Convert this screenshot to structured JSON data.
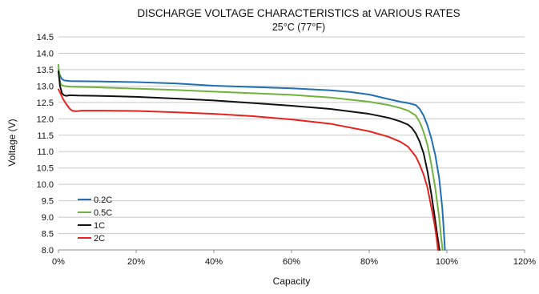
{
  "chart_data": {
    "type": "line",
    "title": "DISCHARGE VOLTAGE CHARACTERISTICS at VARIOUS RATES",
    "subtitle": "25°C (77°F)",
    "xlabel": "Capacity",
    "ylabel": "Voltage (V)",
    "xlim": [
      0,
      120
    ],
    "ylim": [
      8.0,
      14.5
    ],
    "x_unit": "%",
    "x_ticks": [
      "0%",
      "20%",
      "40%",
      "60%",
      "80%",
      "100%",
      "120%"
    ],
    "x_tick_values": [
      0,
      20,
      40,
      60,
      80,
      100,
      120
    ],
    "y_ticks": [
      "8.0",
      "8.5",
      "9.0",
      "9.5",
      "10.0",
      "10.5",
      "11.0",
      "11.5",
      "12.0",
      "12.5",
      "13.0",
      "13.5",
      "14.0",
      "14.5"
    ],
    "y_tick_values": [
      8.0,
      8.5,
      9.0,
      9.5,
      10.0,
      10.5,
      11.0,
      11.5,
      12.0,
      12.5,
      13.0,
      13.5,
      14.0,
      14.5
    ],
    "grid": "horizontal",
    "legend_position": "bottom-left",
    "series": [
      {
        "name": "0.2C",
        "color": "#1f6fb2",
        "x": [
          0,
          0.3,
          0.8,
          1.5,
          3,
          10,
          20,
          30,
          40,
          50,
          60,
          70,
          75,
          80,
          85,
          88,
          90,
          92,
          93,
          94,
          95,
          96,
          97,
          98,
          98.8,
          99.2,
          99.5
        ],
        "y": [
          13.5,
          13.35,
          13.22,
          13.17,
          13.15,
          13.14,
          13.12,
          13.08,
          13.01,
          12.97,
          12.93,
          12.87,
          12.82,
          12.74,
          12.6,
          12.52,
          12.48,
          12.42,
          12.3,
          12.1,
          11.8,
          11.4,
          10.9,
          10.2,
          9.3,
          8.6,
          8.0
        ]
      },
      {
        "name": "0.5C",
        "color": "#6fb33e",
        "x": [
          0,
          0.3,
          0.6,
          1.0,
          1.5,
          3,
          10,
          20,
          30,
          40,
          50,
          60,
          70,
          80,
          85,
          88,
          90,
          92,
          93,
          94,
          95,
          96,
          97,
          98,
          98.5,
          98.9
        ],
        "y": [
          13.65,
          13.2,
          13.05,
          13.02,
          13.0,
          12.98,
          12.96,
          12.92,
          12.88,
          12.83,
          12.78,
          12.73,
          12.65,
          12.52,
          12.42,
          12.33,
          12.25,
          12.1,
          11.9,
          11.6,
          11.2,
          10.6,
          9.9,
          9.0,
          8.4,
          8.0
        ]
      },
      {
        "name": "1C",
        "color": "#111111",
        "x": [
          0,
          0.4,
          0.9,
          1.4,
          2.0,
          3,
          5,
          10,
          20,
          30,
          40,
          50,
          60,
          70,
          80,
          85,
          88,
          90,
          91,
          92,
          93,
          94,
          95,
          96,
          97,
          97.6,
          98.1
        ],
        "y": [
          13.45,
          13.0,
          12.78,
          12.72,
          12.7,
          12.72,
          12.71,
          12.7,
          12.67,
          12.62,
          12.56,
          12.48,
          12.4,
          12.3,
          12.15,
          12.03,
          11.92,
          11.82,
          11.72,
          11.55,
          11.3,
          10.95,
          10.4,
          9.7,
          8.9,
          8.4,
          8.0
        ]
      },
      {
        "name": "2C",
        "color": "#e8231e",
        "x": [
          0,
          0.6,
          1.2,
          2.0,
          2.8,
          3.5,
          4.5,
          6,
          10,
          20,
          30,
          40,
          50,
          60,
          70,
          80,
          85,
          88,
          90,
          91,
          92,
          93,
          94,
          95,
          96,
          96.8,
          97.3,
          97.7
        ],
        "y": [
          12.9,
          12.75,
          12.6,
          12.45,
          12.32,
          12.25,
          12.23,
          12.25,
          12.25,
          12.24,
          12.2,
          12.15,
          12.08,
          11.98,
          11.85,
          11.62,
          11.45,
          11.3,
          11.15,
          11.0,
          10.85,
          10.6,
          10.3,
          9.9,
          9.3,
          8.8,
          8.4,
          8.0
        ]
      }
    ]
  }
}
